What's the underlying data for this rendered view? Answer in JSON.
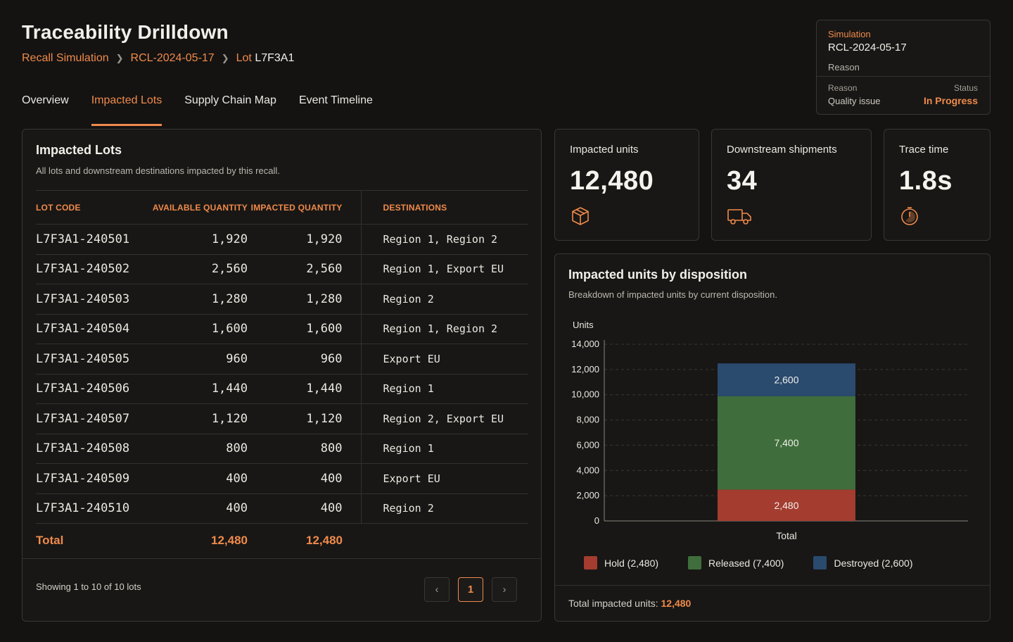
{
  "header": {
    "title": "Traceability Drilldown",
    "breadcrumb": {
      "root": "Recall Simulation",
      "simulation": "RCL-2024-05-17",
      "lot_prefix": "Lot",
      "lot_id": "L7F3A1"
    }
  },
  "tabs": [
    {
      "label": "Overview",
      "active": false
    },
    {
      "label": "Impacted Lots",
      "active": true
    },
    {
      "label": "Supply Chain Map",
      "active": false
    },
    {
      "label": "Event Timeline",
      "active": false
    }
  ],
  "simulation_card": {
    "label": "Simulation",
    "id": "RCL-2024-05-17",
    "reason_heading": "Reason",
    "reason_key": "Reason",
    "reason_value": "Quality issue",
    "status_key": "Status",
    "status_value": "In Progress"
  },
  "lots_panel": {
    "title": "Impacted Lots",
    "subtitle": "All lots and downstream destinations impacted by this recall.",
    "columns": {
      "lot_code": "LOT CODE",
      "available": "AVAILABLE QUANTITY",
      "impacted": "IMPACTED QUANTITY",
      "destinations": "DESTINATIONS"
    },
    "rows": [
      {
        "lot": "L7F3A1-240501",
        "available": "1,920",
        "impacted": "1,920",
        "destinations": "Region 1, Region 2"
      },
      {
        "lot": "L7F3A1-240502",
        "available": "2,560",
        "impacted": "2,560",
        "destinations": "Region 1, Export EU"
      },
      {
        "lot": "L7F3A1-240503",
        "available": "1,280",
        "impacted": "1,280",
        "destinations": "Region 2"
      },
      {
        "lot": "L7F3A1-240504",
        "available": "1,600",
        "impacted": "1,600",
        "destinations": "Region 1, Region 2"
      },
      {
        "lot": "L7F3A1-240505",
        "available": "960",
        "impacted": "960",
        "destinations": "Export EU"
      },
      {
        "lot": "L7F3A1-240506",
        "available": "1,440",
        "impacted": "1,440",
        "destinations": "Region 1"
      },
      {
        "lot": "L7F3A1-240507",
        "available": "1,120",
        "impacted": "1,120",
        "destinations": "Region 2, Export EU"
      },
      {
        "lot": "L7F3A1-240508",
        "available": "800",
        "impacted": "800",
        "destinations": "Region 1"
      },
      {
        "lot": "L7F3A1-240509",
        "available": "400",
        "impacted": "400",
        "destinations": "Export EU"
      },
      {
        "lot": "L7F3A1-240510",
        "available": "400",
        "impacted": "400",
        "destinations": "Region 2"
      }
    ],
    "total": {
      "label": "Total",
      "available": "12,480",
      "impacted": "12,480"
    },
    "showing": "Showing 1 to 10 of 10 lots",
    "pagination": {
      "prev": "‹",
      "current": "1",
      "next": "›"
    }
  },
  "stats": [
    {
      "label": "Impacted units",
      "value": "12,480",
      "icon": "box-icon"
    },
    {
      "label": "Downstream shipments",
      "value": "34",
      "icon": "truck-icon"
    },
    {
      "label": "Trace time",
      "value": "1.8s",
      "icon": "timer-icon"
    }
  ],
  "chart_panel": {
    "title": "Impacted units by disposition",
    "subtitle": "Breakdown of impacted units by current disposition.",
    "total_label": "Total impacted units:",
    "total_value": "12,480"
  },
  "chart_data": {
    "type": "bar",
    "stacked": true,
    "categories": [
      "Total"
    ],
    "ylabel": "Units",
    "ylim": [
      0,
      14000
    ],
    "yticks": [
      0,
      2000,
      4000,
      6000,
      8000,
      10000,
      12000,
      14000
    ],
    "grid": true,
    "legend_position": "bottom",
    "series": [
      {
        "name": "Hold",
        "values": [
          2480
        ],
        "color": "#a43c30",
        "legend": "Hold (2,480)",
        "label": "2,480"
      },
      {
        "name": "Released",
        "values": [
          7400
        ],
        "color": "#3f6e3c",
        "legend": "Released (7,400)",
        "label": "7,400"
      },
      {
        "name": "Destroyed",
        "values": [
          2600
        ],
        "color": "#2a4a6e",
        "legend": "Destroyed (2,600)",
        "label": "2,600"
      }
    ]
  },
  "colors": {
    "accent": "#f08a4b",
    "background": "#141312",
    "panel": "#181715",
    "border": "#3a3633"
  }
}
